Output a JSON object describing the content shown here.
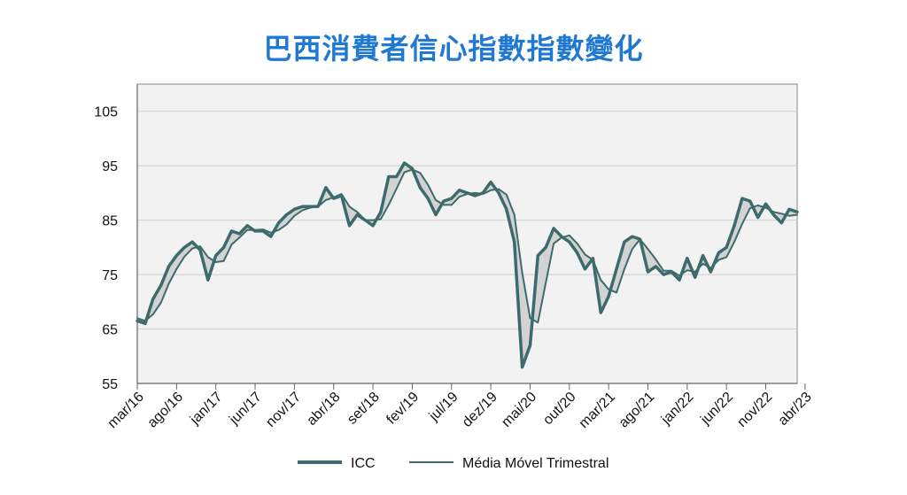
{
  "chart_data": {
    "type": "line",
    "title": "巴西消費者信心指數指數變化",
    "xlabel": "",
    "ylabel": "",
    "ylim": [
      55,
      110
    ],
    "yticks": [
      55,
      65,
      75,
      85,
      95,
      105
    ],
    "x_tick_labels": [
      "mar/16",
      "ago/16",
      "jan/17",
      "jun/17",
      "nov/17",
      "abr/18",
      "set/18",
      "fev/19",
      "jul/19",
      "dez/19",
      "mai/20",
      "out/20",
      "mar/21",
      "ago/21",
      "jan/22",
      "jun/22",
      "nov/22",
      "abr/23"
    ],
    "start_month": "mar/16",
    "legend_position": "bottom",
    "grid": true,
    "colors": {
      "series": "#3d6b6b",
      "fill": "#d3d3d3",
      "title": "#1f78d1",
      "plot_bg": "#f2f2f2"
    },
    "series": [
      {
        "name": "ICC",
        "values": [
          66.5,
          66,
          70.5,
          73,
          76.5,
          78.5,
          80,
          81,
          79.5,
          74,
          78.5,
          80,
          83,
          82.5,
          84,
          83,
          83,
          82,
          84.5,
          86,
          87,
          87.5,
          87.5,
          87.5,
          91,
          89,
          89.5,
          84,
          86,
          85,
          84,
          86.5,
          93,
          93,
          95.5,
          94.5,
          91,
          89,
          86,
          88.5,
          89,
          90.5,
          90,
          89.5,
          90,
          92,
          90,
          87,
          81,
          58,
          62,
          78.5,
          80,
          83.5,
          82,
          81,
          79,
          76,
          78,
          68,
          71,
          76,
          81,
          82,
          81.5,
          75.5,
          76.5,
          75,
          75.5,
          74,
          78,
          74.5,
          78.5,
          75.5,
          79,
          80,
          84,
          89,
          88.5,
          85.5,
          88,
          86,
          84.5,
          87,
          86.5
        ]
      },
      {
        "name": "Média Móvel Trimestral",
        "values": [
          67,
          66.5,
          67.7,
          69.8,
          73.3,
          76,
          78.3,
          79.8,
          80.2,
          78.2,
          77.3,
          77.5,
          80.5,
          81.8,
          83.2,
          83.2,
          83.3,
          82.7,
          83.2,
          84.2,
          85.8,
          86.8,
          87.3,
          87.5,
          88.7,
          89.2,
          89.8,
          87.5,
          86.5,
          85,
          85,
          85.2,
          87.8,
          90.8,
          93.8,
          94.3,
          93.7,
          91.5,
          88.7,
          87.8,
          87.8,
          89.3,
          89.8,
          90,
          89.8,
          90.5,
          90.7,
          89.7,
          86,
          75.3,
          67,
          66.2,
          73.5,
          80.7,
          81.8,
          82.2,
          80.7,
          78.7,
          77.7,
          74,
          72.3,
          71.7,
          76,
          79.7,
          81.5,
          79.7,
          77.8,
          75.7,
          75.7,
          74.8,
          75.8,
          75.5,
          77,
          76.2,
          77.7,
          78.2,
          81,
          84.3,
          87.2,
          87.7,
          87.3,
          86.5,
          86.2,
          85.8,
          86
        ]
      }
    ]
  }
}
